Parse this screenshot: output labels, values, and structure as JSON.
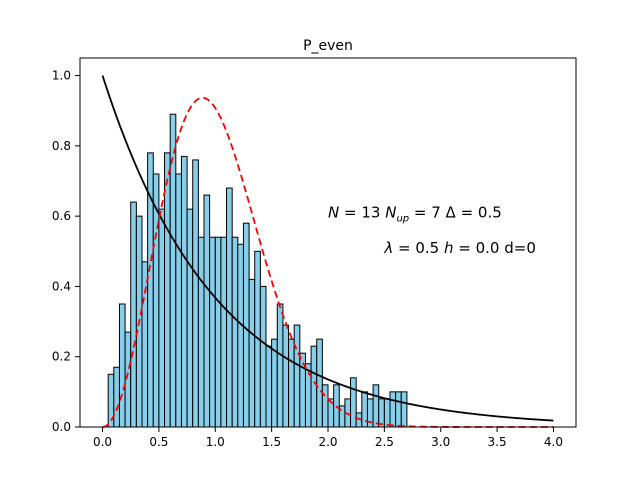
{
  "chart_data": {
    "type": "bar",
    "title": "P_even",
    "xlabel": "",
    "ylabel": "",
    "xlim": [
      -0.2,
      4.2
    ],
    "ylim": [
      0.0,
      1.05
    ],
    "xticks": [
      {
        "value": 0.0,
        "label": "0.0"
      },
      {
        "value": 0.5,
        "label": "0.5"
      },
      {
        "value": 1.0,
        "label": "1.0"
      },
      {
        "value": 1.5,
        "label": "1.5"
      },
      {
        "value": 2.0,
        "label": "2.0"
      },
      {
        "value": 2.5,
        "label": "2.5"
      },
      {
        "value": 3.0,
        "label": "3.0"
      },
      {
        "value": 3.5,
        "label": "3.5"
      },
      {
        "value": 4.0,
        "label": "4.0"
      }
    ],
    "yticks": [
      {
        "value": 0.0,
        "label": "0.0"
      },
      {
        "value": 0.2,
        "label": "0.2"
      },
      {
        "value": 0.4,
        "label": "0.4"
      },
      {
        "value": 0.6,
        "label": "0.6"
      },
      {
        "value": 0.8,
        "label": "0.8"
      },
      {
        "value": 1.0,
        "label": "1.0"
      }
    ],
    "histogram": {
      "bin_width": 0.05,
      "fill": "#87CEEB",
      "edge": "#000000",
      "bins": [
        {
          "x": 0.05,
          "y": 0.15
        },
        {
          "x": 0.1,
          "y": 0.17
        },
        {
          "x": 0.15,
          "y": 0.35
        },
        {
          "x": 0.2,
          "y": 0.27
        },
        {
          "x": 0.25,
          "y": 0.64
        },
        {
          "x": 0.3,
          "y": 0.6
        },
        {
          "x": 0.35,
          "y": 0.47
        },
        {
          "x": 0.4,
          "y": 0.78
        },
        {
          "x": 0.45,
          "y": 0.72
        },
        {
          "x": 0.5,
          "y": 0.62
        },
        {
          "x": 0.55,
          "y": 0.78
        },
        {
          "x": 0.6,
          "y": 0.89
        },
        {
          "x": 0.65,
          "y": 0.72
        },
        {
          "x": 0.7,
          "y": 0.77
        },
        {
          "x": 0.75,
          "y": 0.62
        },
        {
          "x": 0.8,
          "y": 0.76
        },
        {
          "x": 0.85,
          "y": 0.54
        },
        {
          "x": 0.9,
          "y": 0.66
        },
        {
          "x": 0.95,
          "y": 0.54
        },
        {
          "x": 1.0,
          "y": 0.54
        },
        {
          "x": 1.05,
          "y": 0.54
        },
        {
          "x": 1.1,
          "y": 0.68
        },
        {
          "x": 1.15,
          "y": 0.54
        },
        {
          "x": 1.2,
          "y": 0.52
        },
        {
          "x": 1.25,
          "y": 0.58
        },
        {
          "x": 1.3,
          "y": 0.42
        },
        {
          "x": 1.35,
          "y": 0.5
        },
        {
          "x": 1.4,
          "y": 0.4
        },
        {
          "x": 1.45,
          "y": 0.23
        },
        {
          "x": 1.5,
          "y": 0.25
        },
        {
          "x": 1.55,
          "y": 0.35
        },
        {
          "x": 1.6,
          "y": 0.29
        },
        {
          "x": 1.65,
          "y": 0.25
        },
        {
          "x": 1.7,
          "y": 0.29
        },
        {
          "x": 1.75,
          "y": 0.21
        },
        {
          "x": 1.8,
          "y": 0.18
        },
        {
          "x": 1.85,
          "y": 0.23
        },
        {
          "x": 1.9,
          "y": 0.25
        },
        {
          "x": 1.95,
          "y": 0.12
        },
        {
          "x": 2.0,
          "y": 0.08
        },
        {
          "x": 2.05,
          "y": 0.12
        },
        {
          "x": 2.1,
          "y": 0.06
        },
        {
          "x": 2.15,
          "y": 0.08
        },
        {
          "x": 2.2,
          "y": 0.14
        },
        {
          "x": 2.25,
          "y": 0.04
        },
        {
          "x": 2.3,
          "y": 0.1
        },
        {
          "x": 2.35,
          "y": 0.08
        },
        {
          "x": 2.4,
          "y": 0.12
        },
        {
          "x": 2.45,
          "y": 0.08
        },
        {
          "x": 2.5,
          "y": 0.08
        },
        {
          "x": 2.55,
          "y": 0.1
        },
        {
          "x": 2.6,
          "y": 0.1
        },
        {
          "x": 2.65,
          "y": 0.1
        }
      ]
    },
    "curves": [
      {
        "function": "exp(-s)",
        "color": "#000000",
        "style": "solid",
        "x_range": [
          0.0,
          4.0
        ]
      },
      {
        "function": "(32/pi^2) s^2 exp(-4 s^2/pi)",
        "color": "#FF0000",
        "style": "dashed",
        "x_range": [
          0.0,
          4.0
        ]
      }
    ],
    "annotations": [
      {
        "text": "N = 13  N_up = 7   Δ = 0.5",
        "x": 2.0,
        "y": 0.61
      },
      {
        "text": "λ = 0.5  h = 0.0  d=0",
        "x": 2.5,
        "y": 0.51
      }
    ],
    "grid": false,
    "legend": "none"
  }
}
